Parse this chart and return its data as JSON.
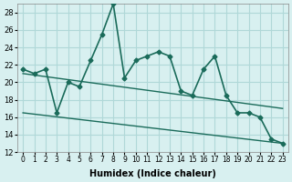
{
  "xlabel": "Humidex (Indice chaleur)",
  "x": [
    0,
    1,
    2,
    3,
    4,
    5,
    6,
    7,
    8,
    9,
    10,
    11,
    12,
    13,
    14,
    15,
    16,
    17,
    18,
    19,
    20,
    21,
    22,
    23
  ],
  "y_main": [
    21.5,
    21.0,
    21.5,
    16.5,
    20.0,
    19.5,
    22.5,
    25.5,
    29.0,
    20.5,
    22.5,
    23.0,
    23.5,
    23.0,
    19.0,
    18.5,
    21.5,
    23.0,
    18.5,
    16.5,
    16.5,
    16.0,
    13.5,
    13.0
  ],
  "trend1_x": [
    0,
    23
  ],
  "trend1_y": [
    21.0,
    17.0
  ],
  "trend2_x": [
    0,
    23
  ],
  "trend2_y": [
    16.5,
    13.0
  ],
  "line_color": "#1a6b5a",
  "bg_color": "#d8f0f0",
  "grid_color": "#b0d8d8",
  "ylim": [
    12,
    29
  ],
  "yticks": [
    12,
    14,
    16,
    18,
    20,
    22,
    24,
    26,
    28
  ],
  "xlim": [
    -0.5,
    23.5
  ]
}
